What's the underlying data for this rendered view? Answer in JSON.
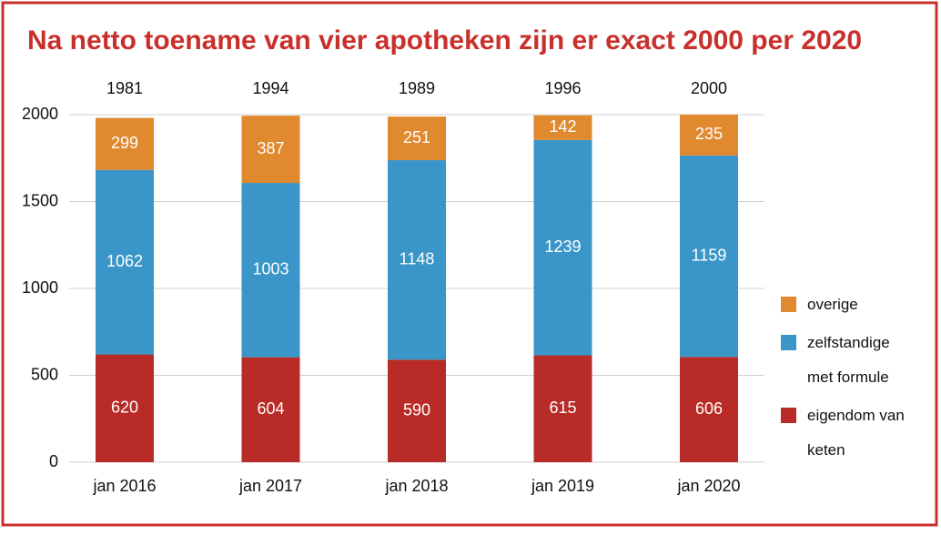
{
  "chart_data": {
    "type": "stacked-bar",
    "title": "Na netto toename van vier apotheken zijn er exact 2000 per 2020",
    "categories": [
      "jan 2016",
      "jan 2017",
      "jan 2018",
      "jan 2019",
      "jan 2020"
    ],
    "totals": [
      1981,
      1994,
      1989,
      1996,
      2000
    ],
    "series": [
      {
        "name": "eigendom van keten",
        "color": "#b82b27",
        "values": [
          620,
          604,
          590,
          615,
          606
        ]
      },
      {
        "name": "zelfstandige met formule",
        "color": "#3a96c8",
        "values": [
          1062,
          1003,
          1148,
          1239,
          1159
        ]
      },
      {
        "name": "overige",
        "color": "#e0892f",
        "values": [
          299,
          387,
          251,
          142,
          235
        ]
      }
    ],
    "ylim": [
      0,
      2000
    ],
    "yticks": [
      0,
      500,
      1000,
      1500,
      2000
    ],
    "grid": true,
    "legend": "right"
  }
}
